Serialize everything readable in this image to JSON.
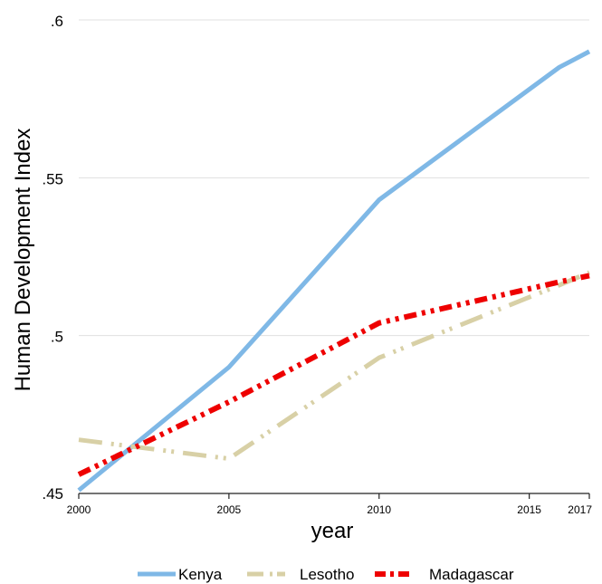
{
  "chart_data": {
    "type": "line",
    "xlabel": "year",
    "ylabel": "Human Development Index",
    "xlim": [
      2000,
      2017
    ],
    "ylim": [
      0.45,
      0.6
    ],
    "x_ticks": [
      2000,
      2005,
      2010,
      2015,
      2017
    ],
    "x_tick_labels": [
      "2000",
      "2005",
      "2010",
      "2015",
      "2017"
    ],
    "y_ticks": [
      0.45,
      0.5,
      0.55,
      0.6
    ],
    "y_tick_labels": [
      ".45",
      ".5",
      ".55",
      ".6"
    ],
    "grid": "horizontal",
    "legend_position": "bottom",
    "x": [
      2000,
      2005,
      2010,
      2016,
      2017
    ],
    "series": [
      {
        "name": "Kenya",
        "color": "#7fb8e6",
        "dash": "solid",
        "values": [
          0.451,
          0.49,
          0.543,
          0.585,
          0.59
        ]
      },
      {
        "name": "Lesotho",
        "color": "#d8d0a6",
        "dash": "long-dash-dot-dot",
        "values": [
          0.467,
          0.461,
          0.493,
          0.516,
          0.52
        ]
      },
      {
        "name": "Madagascar",
        "color": "#ee0000",
        "dash": "dash-dot-dot",
        "values": [
          0.456,
          0.479,
          0.504,
          0.517,
          0.519
        ]
      }
    ]
  }
}
